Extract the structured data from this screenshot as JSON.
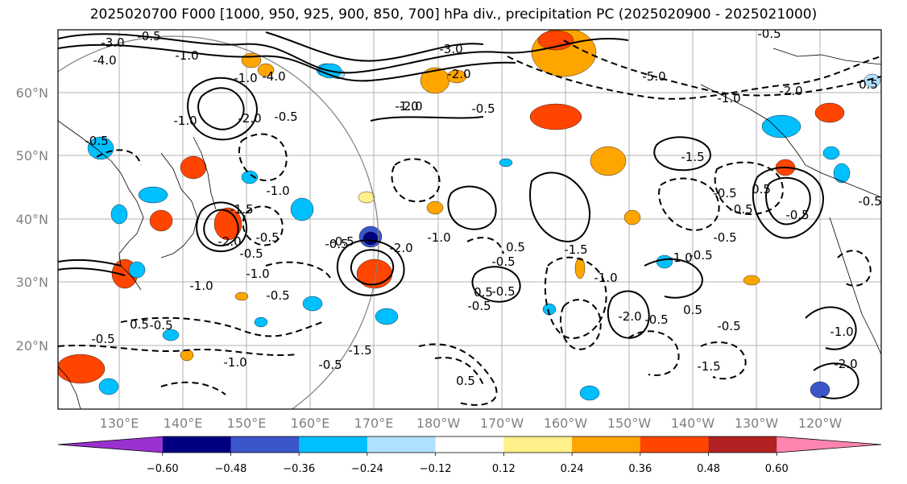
{
  "title": "2025020700 F000 [1000, 950, 925, 900, 850, 700] hPa div., precipitation PC (2025020900 - 2025021000)",
  "map": {
    "lat_labels": [
      "60°N",
      "50°N",
      "40°N",
      "30°N",
      "20°N"
    ],
    "lon_labels": [
      "130°E",
      "140°E",
      "150°E",
      "160°E",
      "170°E",
      "180°W",
      "170°W",
      "160°W",
      "150°W",
      "140°W",
      "130°W",
      "120°W"
    ],
    "contour_labels": [
      "-3.0",
      "-4.0",
      "-0.5",
      "-1.0",
      "-4.0",
      "-3.0",
      "-1.0",
      "-2.0",
      "-0.5",
      "-1.0",
      "-5.0",
      "-2.0",
      "-1.0",
      "-0.5",
      "0.5",
      "-0.5",
      "-2.0",
      "-2.0",
      "-0.5",
      "-1.0",
      "-0.5",
      "-1.0",
      "-1.5",
      "-0.5",
      "-2.0",
      "-0.5",
      "-1.0",
      "-0.5",
      "-1.0",
      "-0.5",
      "0.5",
      "-0.5",
      "-0.5",
      "-1.0",
      "-1.5",
      "-0.5",
      "-2.0",
      "-1.0",
      "-0.5",
      "0.5",
      "0.5",
      "-0.5",
      "-0.5",
      "-1.5",
      "-1.0",
      "-2.0",
      "-0.5",
      "0.5",
      "-0.5",
      "-1.0",
      "-0.5",
      "-0.5",
      "0.5",
      "-0.5",
      "-0.5",
      "-1.5",
      "-2.0",
      "-1.0",
      "-1.5",
      "-0.5",
      "0.5",
      "-0.5"
    ]
  },
  "colorbar": {
    "ticks": [
      "−0.60",
      "−0.48",
      "−0.36",
      "−0.24",
      "−0.12",
      "0.12",
      "0.24",
      "0.36",
      "0.48",
      "0.60"
    ],
    "colors": [
      "#9b30d0",
      "#000080",
      "#3a56c8",
      "#00bfff",
      "#b0e0ff",
      "#ffffff",
      "#fff08a",
      "#ffa500",
      "#ff4500",
      "#b22222",
      "#ff85b0"
    ]
  }
}
